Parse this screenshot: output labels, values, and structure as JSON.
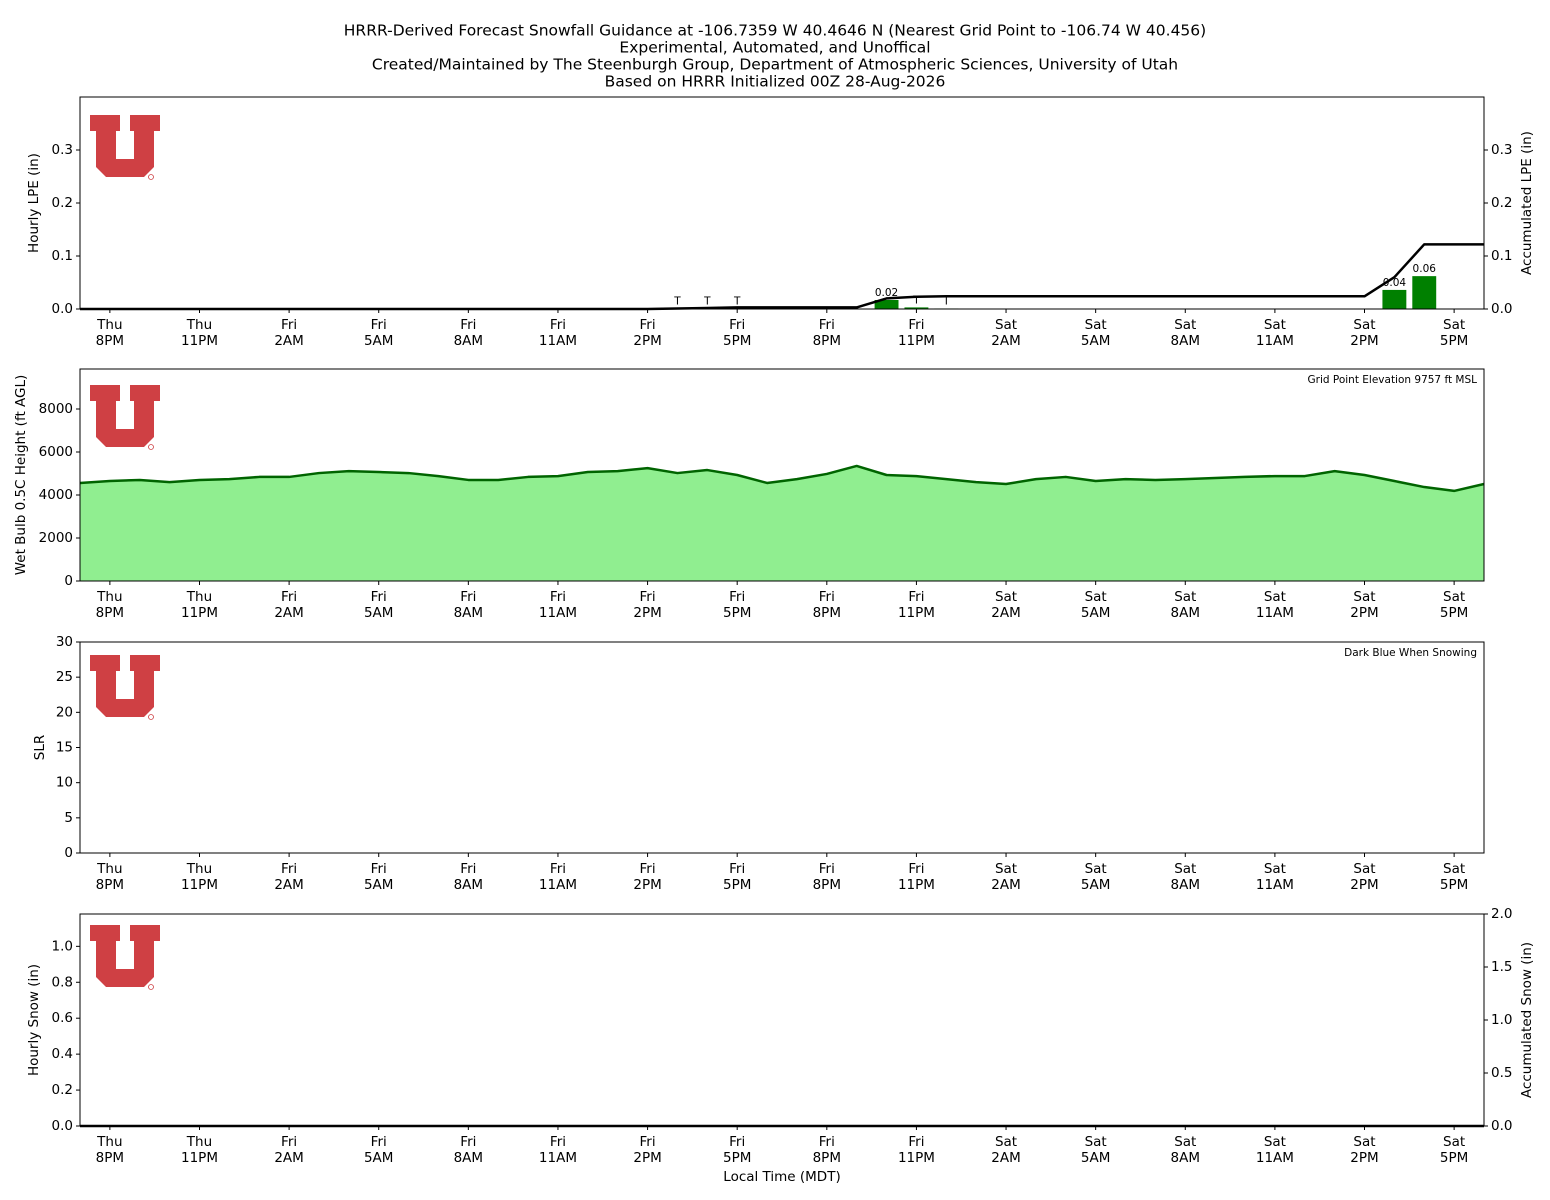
{
  "title": [
    "HRRR-Derived Forecast Snowfall Guidance at -106.7359 W 40.4646 N (Nearest Grid Point to -106.74 W 40.456)",
    "Experimental, Automated, and Unoffical",
    "Created/Maintained by The Steenburgh Group, Department of Atmospheric Sciences, University of Utah",
    "Based on HRRR Initialized 00Z 28-Aug-2026"
  ],
  "chart_data": [
    {
      "type": "bar",
      "ylabel": "Hourly LPE (in)",
      "y2label": "Accumulated LPE (in)",
      "categories": [
        null,
        "Thu\n8PM",
        null,
        null,
        "Thu\n11PM",
        null,
        null,
        "Fri\n2AM",
        null,
        null,
        "Fri\n5AM",
        null,
        null,
        "Fri\n8AM",
        null,
        null,
        "Fri\n11AM",
        null,
        null,
        "Fri\n2PM",
        null,
        null,
        "Fri\n5PM",
        null,
        null,
        "Fri\n8PM",
        null,
        null,
        "Fri\n11PM",
        null,
        null,
        "Sat\n2AM",
        null,
        null,
        "Sat\n5AM",
        null,
        null,
        "Sat\n8AM",
        null,
        null,
        "Sat\n11AM",
        null,
        null,
        "Sat\n2PM",
        null,
        null,
        "Sat\n5PM",
        null
      ],
      "xlim": [
        0,
        47
      ],
      "ylim": [
        0,
        0.4
      ],
      "yticks": [
        {
          "value": 0,
          "label": "0.0"
        },
        0.1,
        0.2,
        0.3
      ],
      "y2lim": [
        0,
        0.4
      ],
      "y2ticks": [
        {
          "value": 0,
          "label": "0.0"
        },
        0.1,
        0.2,
        0.3
      ],
      "series": [
        {
          "type": "bar",
          "color": "#008000",
          "values": [
            0,
            0,
            0,
            0,
            0,
            0,
            0,
            0,
            0,
            0,
            0,
            0,
            0,
            0,
            0,
            0,
            0,
            0,
            0,
            0,
            0.001,
            0.001,
            0.001,
            0,
            0,
            0,
            0,
            0.017,
            0.003,
            0.001,
            0,
            0,
            0,
            0,
            0,
            0,
            0,
            0,
            0,
            0,
            0,
            0,
            0,
            0,
            0.036,
            0.062,
            0,
            0
          ],
          "value_labels": [
            null,
            null,
            null,
            null,
            null,
            null,
            null,
            null,
            null,
            null,
            null,
            null,
            null,
            null,
            null,
            null,
            null,
            null,
            null,
            null,
            "T",
            "T",
            "T",
            null,
            null,
            null,
            null,
            "0.02",
            "T",
            "T",
            null,
            null,
            null,
            null,
            null,
            null,
            null,
            null,
            null,
            null,
            null,
            null,
            null,
            null,
            "0.04",
            "0.06",
            null,
            null
          ]
        },
        {
          "type": "line",
          "axis": "y2",
          "color": "#000000",
          "values": [
            0,
            0,
            0,
            0,
            0,
            0,
            0,
            0,
            0,
            0,
            0,
            0,
            0,
            0,
            0,
            0,
            0,
            0,
            0,
            0,
            0.001,
            0.002,
            0.003,
            0.003,
            0.003,
            0.003,
            0.003,
            0.02,
            0.023,
            0.024,
            0.024,
            0.024,
            0.024,
            0.024,
            0.024,
            0.024,
            0.024,
            0.024,
            0.024,
            0.024,
            0.024,
            0.024,
            0.024,
            0.024,
            0.06,
            0.122,
            0.122,
            0.122
          ]
        }
      ]
    },
    {
      "type": "area",
      "ylabel": "Wet Bulb 0.5C Height (ft AGL)",
      "annotation": "Grid Point Elevation 9757 ft MSL",
      "categories": [
        null,
        "Thu\n8PM",
        null,
        null,
        "Thu\n11PM",
        null,
        null,
        "Fri\n2AM",
        null,
        null,
        "Fri\n5AM",
        null,
        null,
        "Fri\n8AM",
        null,
        null,
        "Fri\n11AM",
        null,
        null,
        "Fri\n2PM",
        null,
        null,
        "Fri\n5PM",
        null,
        null,
        "Fri\n8PM",
        null,
        null,
        "Fri\n11PM",
        null,
        null,
        "Sat\n2AM",
        null,
        null,
        "Sat\n5AM",
        null,
        null,
        "Sat\n8AM",
        null,
        null,
        "Sat\n11AM",
        null,
        null,
        "Sat\n2PM",
        null,
        null,
        "Sat\n5PM",
        null
      ],
      "xlim": [
        0,
        47
      ],
      "ylim": [
        0,
        9860
      ],
      "yticks": [
        0,
        2000,
        4000,
        6000,
        8000
      ],
      "series": [
        {
          "type": "area",
          "color": "#90ee90",
          "edgecolor": "#006400",
          "values": [
            4560,
            4650,
            4700,
            4600,
            4700,
            4740,
            4840,
            4840,
            5020,
            5110,
            5070,
            5020,
            4880,
            4700,
            4700,
            4840,
            4880,
            5070,
            5110,
            5250,
            5020,
            5160,
            4930,
            4560,
            4740,
            4980,
            5350,
            4930,
            4880,
            4740,
            4600,
            4510,
            4740,
            4840,
            4650,
            4740,
            4700,
            4740,
            4790,
            4840,
            4880,
            4880,
            5110,
            4930,
            4650,
            4370,
            4190,
            4510
          ]
        }
      ]
    },
    {
      "type": "bar",
      "ylabel": "SLR",
      "annotation": "Dark Blue When Snowing",
      "categories": [
        null,
        "Thu\n8PM",
        null,
        null,
        "Thu\n11PM",
        null,
        null,
        "Fri\n2AM",
        null,
        null,
        "Fri\n5AM",
        null,
        null,
        "Fri\n8AM",
        null,
        null,
        "Fri\n11AM",
        null,
        null,
        "Fri\n2PM",
        null,
        null,
        "Fri\n5PM",
        null,
        null,
        "Fri\n8PM",
        null,
        null,
        "Fri\n11PM",
        null,
        null,
        "Sat\n2AM",
        null,
        null,
        "Sat\n5AM",
        null,
        null,
        "Sat\n8AM",
        null,
        null,
        "Sat\n11AM",
        null,
        null,
        "Sat\n2PM",
        null,
        null,
        "Sat\n5PM",
        null
      ],
      "xlim": [
        0,
        47
      ],
      "ylim": [
        0,
        30
      ],
      "yticks": [
        0,
        5,
        10,
        15,
        20,
        25,
        30
      ],
      "series": []
    },
    {
      "type": "bar",
      "ylabel": "Hourly Snow (in)",
      "y2label": "Accumulated Snow (in)",
      "xlabel": "Local Time (MDT)",
      "categories": [
        null,
        "Thu\n8PM",
        null,
        null,
        "Thu\n11PM",
        null,
        null,
        "Fri\n2AM",
        null,
        null,
        "Fri\n5AM",
        null,
        null,
        "Fri\n8AM",
        null,
        null,
        "Fri\n11AM",
        null,
        null,
        "Fri\n2PM",
        null,
        null,
        "Fri\n5PM",
        null,
        null,
        "Fri\n8PM",
        null,
        null,
        "Fri\n11PM",
        null,
        null,
        "Sat\n2AM",
        null,
        null,
        "Sat\n5AM",
        null,
        null,
        "Sat\n8AM",
        null,
        null,
        "Sat\n11AM",
        null,
        null,
        "Sat\n2PM",
        null,
        null,
        "Sat\n5PM",
        null
      ],
      "xlim": [
        0,
        47
      ],
      "ylim": [
        0,
        1.18
      ],
      "yticks": [
        {
          "value": 0,
          "label": "0.0"
        },
        0.2,
        0.4,
        0.6,
        0.8,
        {
          "value": 1,
          "label": "1.0"
        }
      ],
      "y2lim": [
        0,
        2
      ],
      "y2ticks": [
        {
          "value": 0,
          "label": "0.0"
        },
        0.5,
        {
          "value": 1,
          "label": "1.0"
        },
        1.5,
        {
          "value": 2,
          "label": "2.0"
        }
      ],
      "series": [
        {
          "type": "bar",
          "color": "#00008b",
          "values": [
            0,
            0,
            0,
            0,
            0,
            0,
            0,
            0,
            0,
            0,
            0,
            0,
            0,
            0,
            0,
            0,
            0,
            0,
            0,
            0,
            0,
            0,
            0,
            0,
            0,
            0,
            0,
            0,
            0,
            0,
            0,
            0,
            0,
            0,
            0,
            0,
            0,
            0,
            0,
            0,
            0,
            0,
            0,
            0,
            0,
            0,
            0,
            0
          ]
        },
        {
          "type": "line",
          "axis": "y2",
          "color": "#000000",
          "values": [
            0,
            0,
            0,
            0,
            0,
            0,
            0,
            0,
            0,
            0,
            0,
            0,
            0,
            0,
            0,
            0,
            0,
            0,
            0,
            0,
            0,
            0,
            0,
            0,
            0,
            0,
            0,
            0,
            0,
            0,
            0,
            0,
            0,
            0,
            0,
            0,
            0,
            0,
            0,
            0,
            0,
            0,
            0,
            0,
            0,
            0,
            0,
            0
          ]
        }
      ]
    }
  ]
}
